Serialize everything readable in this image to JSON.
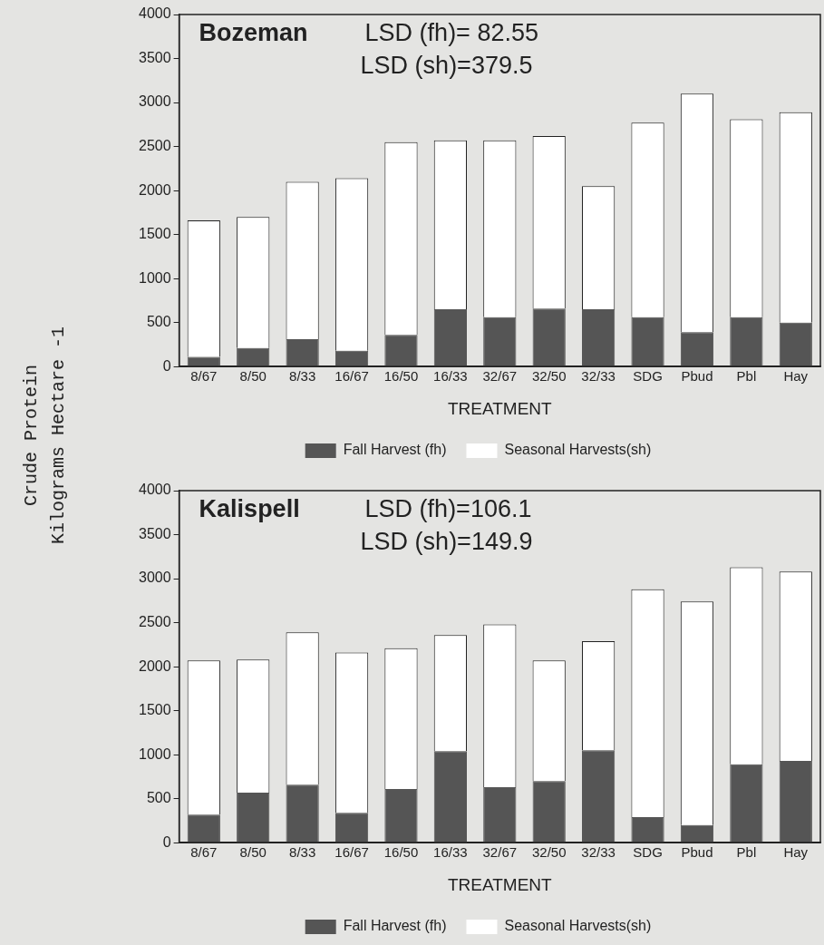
{
  "chart_data": [
    {
      "type": "bar",
      "title": "Bozeman",
      "ylabel": "Crude Protein Kilograms Hectare -1",
      "xlabel": "TREATMENT",
      "stacked": true,
      "legend": "bottom",
      "grid": false,
      "annotations": [
        "LSD (fh)= 82.55",
        "LSD (sh)=379.5"
      ],
      "categories": [
        "8/67",
        "8/50",
        "8/33",
        "16/67",
        "16/50",
        "16/33",
        "32/67",
        "32/50",
        "32/33",
        "SDG",
        "Pbud",
        "Pbl",
        "Hay"
      ],
      "ylim": [
        0,
        4000
      ],
      "yticks": [
        0,
        500,
        1000,
        1500,
        2000,
        2500,
        3000,
        3500,
        4000
      ],
      "series": [
        {
          "name": "Fall Harvest (fh)",
          "color": "#555555",
          "values": [
            110,
            210,
            310,
            180,
            360,
            650,
            560,
            660,
            650,
            560,
            390,
            560,
            500
          ]
        },
        {
          "name": "Seasonal Harvests(sh)",
          "color": "#ffffff",
          "values": [
            1550,
            1490,
            1790,
            1960,
            2190,
            1920,
            2010,
            1960,
            1400,
            2210,
            2710,
            2250,
            2390
          ]
        }
      ]
    },
    {
      "type": "bar",
      "title": "Kalispell",
      "xlabel": "TREATMENT",
      "stacked": true,
      "legend": "bottom",
      "grid": false,
      "annotations": [
        "LSD (fh)=106.1",
        "LSD (sh)=149.9"
      ],
      "categories": [
        "8/67",
        "8/50",
        "8/33",
        "16/67",
        "16/50",
        "16/33",
        "32/67",
        "32/50",
        "32/33",
        "SDG",
        "Pbud",
        "Pbl",
        "Hay"
      ],
      "ylim": [
        0,
        4000
      ],
      "yticks": [
        0,
        500,
        1000,
        1500,
        2000,
        2500,
        3000,
        3500,
        4000
      ],
      "series": [
        {
          "name": "Fall Harvest (fh)",
          "color": "#555555",
          "values": [
            320,
            570,
            660,
            340,
            610,
            1040,
            630,
            700,
            1050,
            290,
            200,
            890,
            930
          ]
        },
        {
          "name": "Seasonal Harvests(sh)",
          "color": "#ffffff",
          "values": [
            1750,
            1510,
            1730,
            1820,
            1600,
            1320,
            1850,
            1370,
            1240,
            2590,
            2540,
            2240,
            2150
          ]
        }
      ]
    }
  ]
}
